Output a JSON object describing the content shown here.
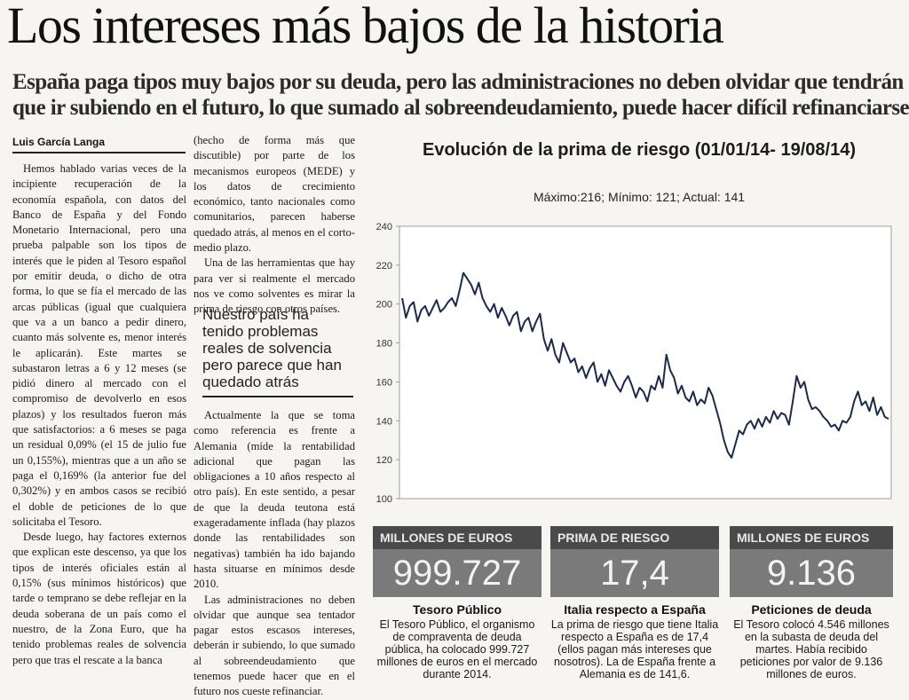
{
  "headline": "Los intereses más bajos de la historia",
  "subhead": [
    "España paga tipos muy bajos por su deuda, pero las administraciones no deben olvidar que tendrán",
    "que ir subiendo en el futuro, lo que sumado al sobreendeudamiento, puede hacer difícil refinanciarse"
  ],
  "byline": "Luis García Langa",
  "col1": [
    "Hemos hablado varias veces de la incipiente recuperación de la economía española, con datos del Banco de España y del Fondo Monetario Internacional, pero una prueba palpable son los tipos de interés que le piden al Tesoro español por emitir deuda, o dicho de otra forma, lo que se fía el mercado de las arcas públicas (igual que cualquiera que va a un banco a pedir dinero, cuanto más solvente es, menor interés le aplicarán). Este martes se subastaron letras a 6 y 12 meses (se pidió dinero al mercado con el compromiso de devolverlo en esos plazos) y los resultados fueron más que satisfactorios: a 6 meses se paga un residual 0,09% (el 15 de julio fue un 0,155%), mientras que a un año se paga el 0,169% (la anterior fue del 0,302%) y en ambos casos se recibió el doble de peticiones de lo que solicitaba el Tesoro.",
    "Desde luego, hay factores externos que explican este descenso, ya que los tipos de interés oficiales están al 0,15% (sus mínimos históricos) que tarde o temprano se debe reflejar en la deuda soberana de un país como el nuestro, de la Zona Euro, que ha tenido problemas reales de solvencia pero que tras el rescate a la banca"
  ],
  "col2top": [
    "(hecho de forma más que discutible) por parte de los mecanismos europeos (MEDE) y los datos de crecimiento económico, tanto nacionales como comunitarios, parecen haberse quedado atrás, al menos en el corto-medio plazo.",
    "Una de las herramientas que hay para ver si realmente el mercado nos ve como solventes es mirar la prima de riesgo con otros países."
  ],
  "pullquote": "Nuestro país ha tenido problemas reales de solvencia pero parece que han quedado atrás",
  "col2bot": [
    "Actualmente la que se toma como referencia es frente a Alemania (míde la rentabilidad adicional que pagan las obligaciones a 10 años respecto al otro país). En este sentido, a pesar de que la deuda teutona está exageradamente inflada (hay plazos donde las rentabilidades son negativas) también ha ido bajando hasta situarse en mínimos desde 2010.",
    "Las administraciones no deben olvidar que aunque sea tentador pagar estos escasos intereses, deberán ir subiendo, lo que sumado al sobreendeudamiento que tenemos puede hacer que en el futuro nos cueste refinanciar."
  ],
  "chart_data": {
    "type": "line",
    "title": "Evolución de la prima de riesgo (01/01/14- 19/08/14)",
    "subtitle": "Máximo:216; Mínimo: 121; Actual: 141",
    "ylim": [
      100,
      240
    ],
    "yticks": [
      100,
      120,
      140,
      160,
      180,
      200,
      220,
      240
    ],
    "xlabel": "",
    "ylabel": "",
    "grid": false,
    "values": [
      203,
      193,
      199,
      201,
      191,
      197,
      199,
      194,
      198,
      202,
      196,
      198,
      201,
      203,
      199,
      207,
      216,
      213,
      210,
      205,
      211,
      203,
      199,
      196,
      200,
      193,
      198,
      194,
      189,
      194,
      196,
      186,
      191,
      193,
      186,
      191,
      195,
      182,
      176,
      182,
      174,
      170,
      180,
      175,
      170,
      172,
      165,
      168,
      162,
      167,
      170,
      160,
      164,
      158,
      166,
      162,
      158,
      155,
      160,
      163,
      158,
      152,
      157,
      155,
      150,
      158,
      156,
      163,
      157,
      174,
      166,
      162,
      154,
      158,
      152,
      150,
      155,
      148,
      151,
      149,
      157,
      153,
      146,
      139,
      130,
      124,
      121,
      128,
      135,
      133,
      138,
      140,
      136,
      141,
      137,
      142,
      139,
      145,
      141,
      144,
      143,
      138,
      150,
      163,
      157,
      160,
      151,
      146,
      147,
      145,
      142,
      140,
      137,
      138,
      135,
      140,
      139,
      142,
      150,
      155,
      148,
      150,
      145,
      152,
      143,
      147,
      142,
      141
    ]
  },
  "boxes": [
    {
      "label": "MILLONES DE EUROS",
      "value": "999.727",
      "caption": "Tesoro Público",
      "text": "El Tesoro Público, el organismo de compraventa de deuda pública, ha colocado 999.727 millones de euros en el mercado durante 2014."
    },
    {
      "label": "PRIMA DE RIESGO",
      "value": "17,4",
      "caption": "Italia respecto a España",
      "text": "La prima de riesgo que tiene Italia respecto a España es de 17,4 (ellos pagan más intereses que nosotros). La de España frente a Alemania es de 141,6."
    },
    {
      "label": "MILLONES DE EUROS",
      "value": "9.136",
      "caption": "Peticiones de deuda",
      "text": "El Tesoro colocó 4.546 millones en la subasta de deuda del martes. Había recibido peticiones por valor de 9.136 millones de euros."
    }
  ]
}
